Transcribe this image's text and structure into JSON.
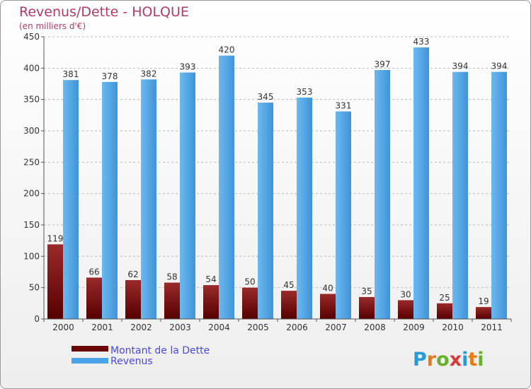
{
  "chart_data": {
    "type": "bar",
    "title": "Revenus/Dette - HOLQUE",
    "subtitle": "(en milliers d'€)",
    "categories": [
      "2000",
      "2001",
      "2002",
      "2003",
      "2004",
      "2005",
      "2006",
      "2007",
      "2008",
      "2009",
      "2010",
      "2011"
    ],
    "series": [
      {
        "name": "Montant de la Dette",
        "color": "#7a0b0b",
        "values": [
          119,
          66,
          62,
          58,
          54,
          50,
          45,
          40,
          35,
          30,
          25,
          19
        ]
      },
      {
        "name": "Revenus",
        "color": "#4aa3e8",
        "values": [
          381,
          378,
          382,
          393,
          420,
          345,
          353,
          331,
          397,
          433,
          394,
          394
        ]
      }
    ],
    "yticks": [
      0,
      50,
      100,
      150,
      200,
      250,
      300,
      350,
      400,
      450
    ],
    "ylim": [
      0,
      450
    ],
    "grid": true,
    "legend_position": "bottom-left"
  },
  "branding": {
    "logo_letters": [
      "P",
      "r",
      "o",
      "x",
      "i",
      "t",
      "i"
    ],
    "logo_colors": [
      "#2a9ad6",
      "#e57a16",
      "#6ab02e",
      "#d63a3a",
      "#2a9ad6",
      "#e57a16",
      "#6ab02e"
    ]
  }
}
